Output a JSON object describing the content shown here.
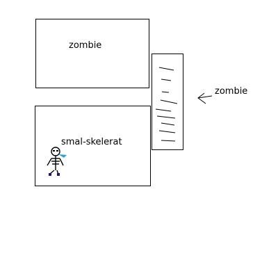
{
  "boxes": {
    "top": {
      "label": "zombie"
    },
    "bottom": {
      "label": "smal-skelerat"
    },
    "side": {
      "label": "zombie"
    }
  },
  "icons": {
    "arrow": "arrow-left-icon",
    "sprite": "skeleton-sprite-icon"
  },
  "colors": {
    "line": "#000000",
    "sprite_accent": "#2aa0d8",
    "sprite_dark": "#1a1a6e"
  }
}
